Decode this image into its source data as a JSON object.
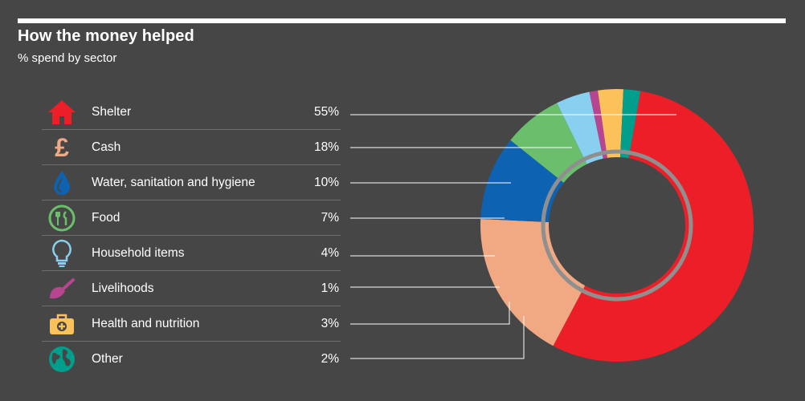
{
  "title": "How the money helped",
  "subtitle": "% spend by sector",
  "chart_data": {
    "type": "pie",
    "categories": [
      "Shelter",
      "Cash",
      "Water, sanitation and hygiene",
      "Food",
      "Household items",
      "Livelihoods",
      "Health and nutrition",
      "Other"
    ],
    "values": [
      55,
      18,
      10,
      7,
      4,
      1,
      3,
      2
    ],
    "value_labels": [
      "55%",
      "18%",
      "10%",
      "7%",
      "4%",
      "1%",
      "3%",
      "2%"
    ],
    "colors": [
      "#ec1f28",
      "#f0a983",
      "#0e62b2",
      "#6bbf6c",
      "#88cff0",
      "#b8458f",
      "#fbc25c",
      "#009e8b"
    ],
    "icons": [
      "house-icon",
      "pound-icon",
      "water-drop-icon",
      "food-icon",
      "lightbulb-icon",
      "trowel-icon",
      "medical-kit-icon",
      "globe-icon"
    ],
    "hole": 0.5
  }
}
